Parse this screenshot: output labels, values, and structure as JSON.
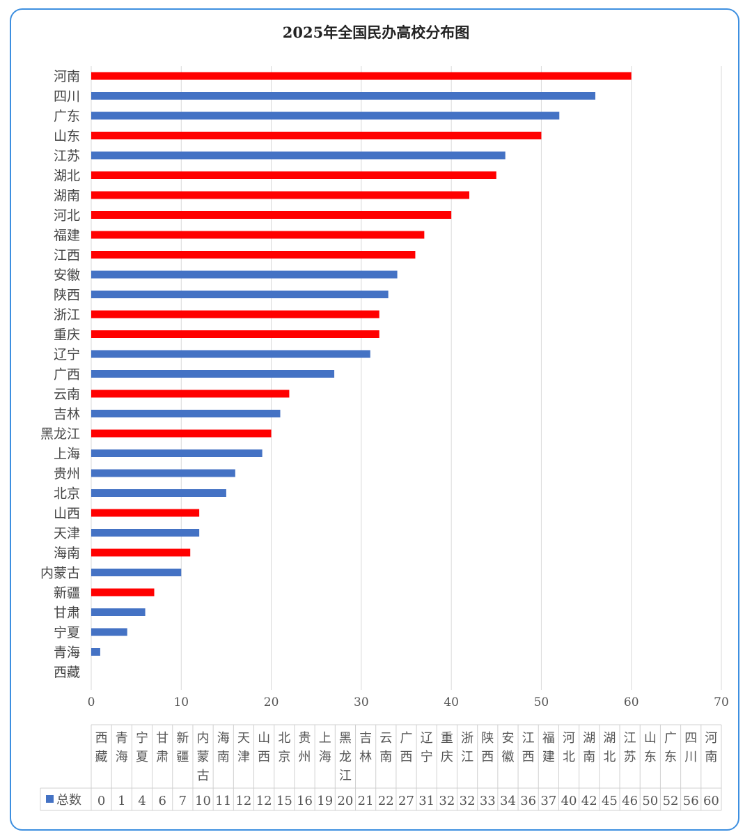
{
  "chart_data": {
    "type": "bar",
    "orientation": "horizontal",
    "title": "2025年全国民办高校分布图",
    "xlabel": "",
    "ylabel": "",
    "xlim": [
      0,
      70
    ],
    "xticks": [
      0,
      10,
      20,
      30,
      40,
      50,
      60,
      70
    ],
    "grid": true,
    "legend": {
      "label": "总数",
      "color": "#4472c4",
      "placement": "bottom-left of data table"
    },
    "categories": [
      "西藏",
      "青海",
      "宁夏",
      "甘肃",
      "新疆",
      "内蒙古",
      "海南",
      "天津",
      "山西",
      "北京",
      "贵州",
      "上海",
      "黑龙江",
      "吉林",
      "云南",
      "广西",
      "辽宁",
      "重庆",
      "浙江",
      "陕西",
      "安徽",
      "江西",
      "福建",
      "河北",
      "湖南",
      "湖北",
      "江苏",
      "山东",
      "广东",
      "四川",
      "河南"
    ],
    "series": [
      {
        "name": "总数",
        "values": [
          0,
          1,
          4,
          6,
          7,
          10,
          11,
          12,
          12,
          15,
          16,
          19,
          20,
          21,
          22,
          27,
          31,
          32,
          32,
          33,
          34,
          36,
          37,
          40,
          42,
          45,
          46,
          50,
          52,
          56,
          60
        ]
      }
    ],
    "bar_colors": [
      "blue",
      "blue",
      "blue",
      "blue",
      "red",
      "blue",
      "red",
      "blue",
      "red",
      "blue",
      "blue",
      "blue",
      "red",
      "blue",
      "red",
      "blue",
      "blue",
      "red",
      "red",
      "blue",
      "blue",
      "red",
      "red",
      "red",
      "red",
      "red",
      "blue",
      "red",
      "blue",
      "blue",
      "red"
    ],
    "palette": {
      "blue": "#4472c4",
      "red": "#ff0000",
      "grid": "#d9d9d9",
      "frame": "#3d8fe0"
    }
  }
}
